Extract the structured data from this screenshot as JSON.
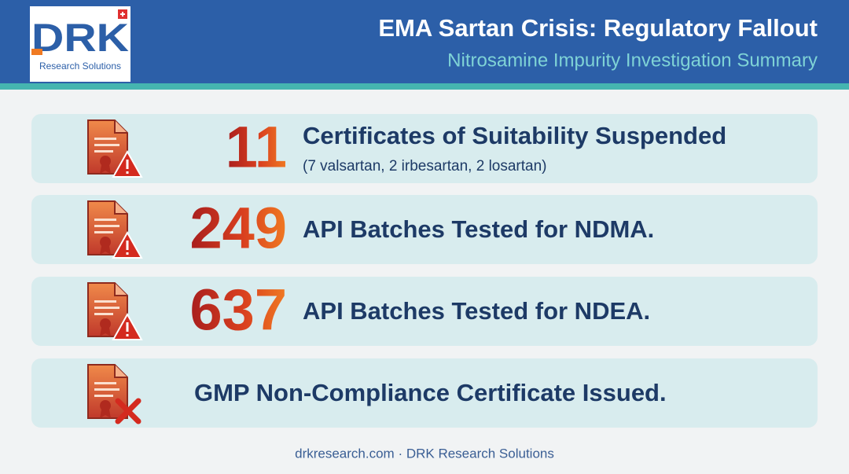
{
  "header": {
    "logo": {
      "name": "DRK",
      "tagline": "Research Solutions"
    },
    "title": "EMA Sartan Crisis: Regulatory Fallout",
    "subtitle": "Nitrosamine Impurity Investigation Summary"
  },
  "items": [
    {
      "number": 11,
      "label": "Certificates of Suitability Suspended",
      "note": "(7 valsartan, 2 irbesartan, 2 losartan)"
    },
    {
      "number": 249,
      "label": "API Batches Tested for NDMA."
    },
    {
      "number": 637,
      "label": "API Batches Tested for NDEA."
    },
    {
      "label": "GMP Non-Compliance Certificate Issued."
    }
  ],
  "footer": "drkresearch.com · DRK Research Solutions"
}
